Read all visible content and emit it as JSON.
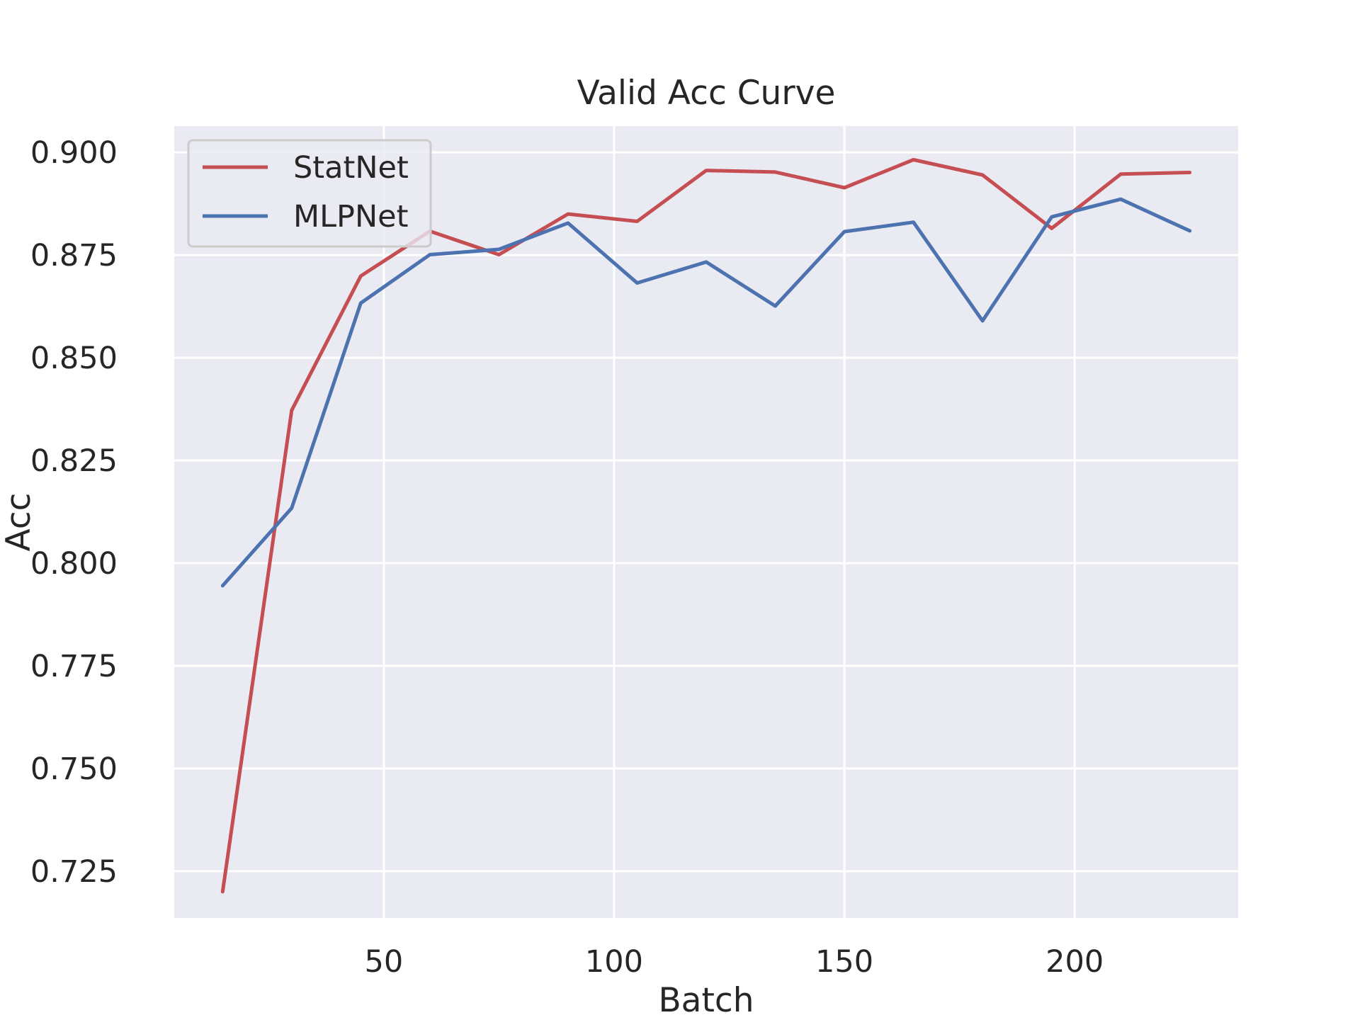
{
  "chart_data": {
    "type": "line",
    "title": "Valid Acc Curve",
    "xlabel": "Batch",
    "ylabel": "Acc",
    "x": [
      15,
      30,
      45,
      60,
      75,
      90,
      105,
      120,
      135,
      150,
      165,
      180,
      195,
      210,
      225
    ],
    "series": [
      {
        "name": "StatNet",
        "color": "#c44e52",
        "values": [
          0.72,
          0.8372,
          0.8699,
          0.8808,
          0.8751,
          0.885,
          0.8832,
          0.8956,
          0.8952,
          0.8914,
          0.8982,
          0.8945,
          0.8815,
          0.8947,
          0.8951
        ]
      },
      {
        "name": "MLPNet",
        "color": "#4c72b0",
        "values": [
          0.7945,
          0.8134,
          0.8633,
          0.8751,
          0.8764,
          0.8828,
          0.8682,
          0.8733,
          0.8626,
          0.8807,
          0.883,
          0.859,
          0.8843,
          0.8886,
          0.8809
        ]
      }
    ],
    "xlim": [
      4.5,
      235.5
    ],
    "ylim": [
      0.7136,
      0.9064
    ],
    "xticks": [
      50,
      100,
      150,
      200
    ],
    "yticks": [
      0.725,
      0.75,
      0.775,
      0.8,
      0.825,
      0.85,
      0.875,
      0.9
    ],
    "ytick_labels": [
      "0.725",
      "0.750",
      "0.775",
      "0.800",
      "0.825",
      "0.850",
      "0.875",
      "0.900"
    ],
    "grid": true,
    "legend_position": "top-left",
    "background_color": "#eaeaf2"
  }
}
